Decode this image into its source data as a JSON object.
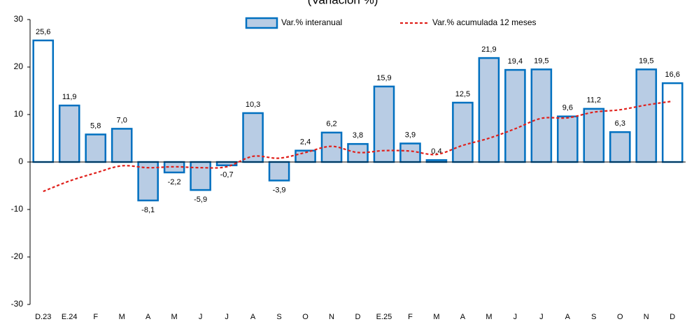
{
  "chart_data": {
    "type": "bar",
    "title": "(Variación %)",
    "categories": [
      "D.23",
      "E.24",
      "F",
      "M",
      "A",
      "M",
      "J",
      "J",
      "A",
      "S",
      "O",
      "N",
      "D",
      "E.25",
      "F",
      "M",
      "A",
      "M",
      "J",
      "J",
      "A",
      "S",
      "O",
      "N",
      "D"
    ],
    "series": [
      {
        "name": "Var.% interanual",
        "type": "bar",
        "color": "#b8cce4",
        "edge_color": "#0070c0",
        "colors": [
          "#ffffff",
          "#b8cce4",
          "#b8cce4",
          "#b8cce4",
          "#b8cce4",
          "#b8cce4",
          "#b8cce4",
          "#b8cce4",
          "#b8cce4",
          "#b8cce4",
          "#b8cce4",
          "#b8cce4",
          "#b8cce4",
          "#b8cce4",
          "#b8cce4",
          "#b8cce4",
          "#b8cce4",
          "#b8cce4",
          "#b8cce4",
          "#b8cce4",
          "#b8cce4",
          "#b8cce4",
          "#b8cce4",
          "#b8cce4",
          "#ffffff"
        ],
        "values": [
          25.6,
          11.9,
          5.8,
          7.0,
          -8.1,
          -2.2,
          -5.9,
          -0.7,
          10.3,
          -3.9,
          2.4,
          6.2,
          3.8,
          15.9,
          3.9,
          0.4,
          12.5,
          21.9,
          19.4,
          19.5,
          9.6,
          11.2,
          6.3,
          19.5,
          16.6
        ],
        "value_labels": [
          "25,6",
          "11,9",
          "5,8",
          "7,0",
          "-8,1",
          "-2,2",
          "-5,9",
          "-0,7",
          "10,3",
          "-3,9",
          "2,4",
          "6,2",
          "3,8",
          "15,9",
          "3,9",
          "0,4",
          "12,5",
          "21,9",
          "19,4",
          "19,5",
          "9,6",
          "11,2",
          "6,3",
          "19,5",
          "16,6"
        ]
      },
      {
        "name": "Var.% acumulada 12 meses",
        "type": "line",
        "color": "#e0201b",
        "dashed": true,
        "values": [
          -6.2,
          -4.0,
          -2.3,
          -0.8,
          -1.2,
          -1.0,
          -1.2,
          -1.0,
          1.2,
          0.8,
          2.0,
          3.3,
          2.0,
          2.4,
          2.3,
          1.6,
          3.5,
          5.0,
          7.0,
          9.2,
          9.3,
          10.5,
          11.0,
          12.0,
          12.8
        ]
      }
    ],
    "ylim": [
      -30,
      30
    ],
    "yticks": [
      -30,
      -20,
      -10,
      0,
      10,
      20,
      30
    ],
    "legend": "top"
  }
}
